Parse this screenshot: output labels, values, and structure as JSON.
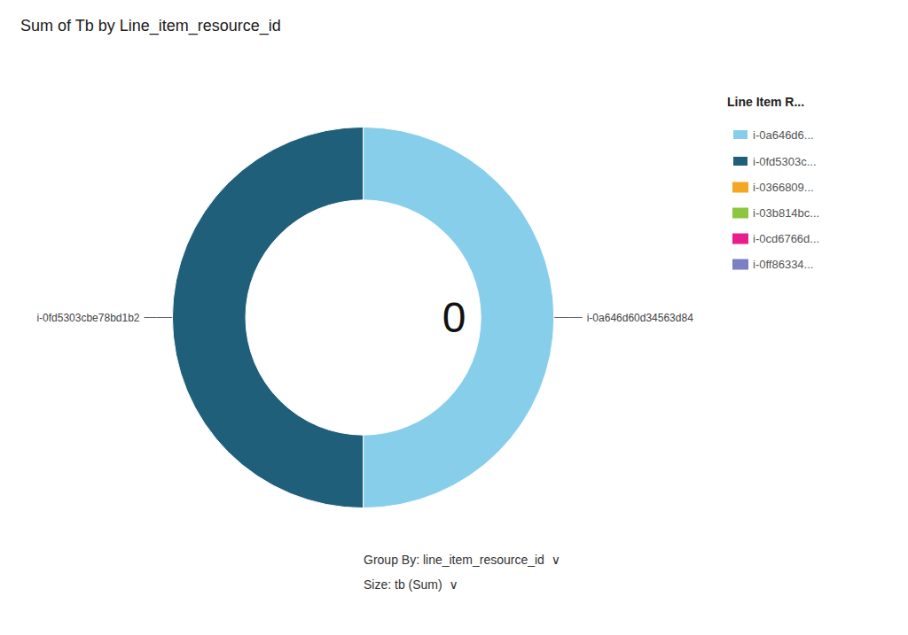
{
  "chart_data": {
    "type": "pie",
    "title": "Sum of Tb by Line_item_resource_id",
    "categories": [
      "i-0a646d6...",
      "i-0fd5303c...",
      "i-0366809...",
      "i-03b814bc...",
      "i-0cd6766d...",
      "i-0ff86334..."
    ],
    "values": [
      50,
      50,
      0,
      0,
      0,
      0
    ],
    "colors": [
      "#87CEEB",
      "#1F5F7A",
      "#F5A623",
      "#8DC63F",
      "#E91E8C",
      "#7B7FC4"
    ],
    "slice_labels": [
      "i-0a646d60d34563d84",
      "i-0fd5303cbe78bd1b2",
      null,
      null,
      null,
      null
    ],
    "center_text": "0",
    "legend_title": "Line Item R...",
    "footer": [
      "Group By: line_item_resource_id  ∨",
      "Size: tb (Sum)  ∨"
    ],
    "legend": "right",
    "data_labels": false
  }
}
